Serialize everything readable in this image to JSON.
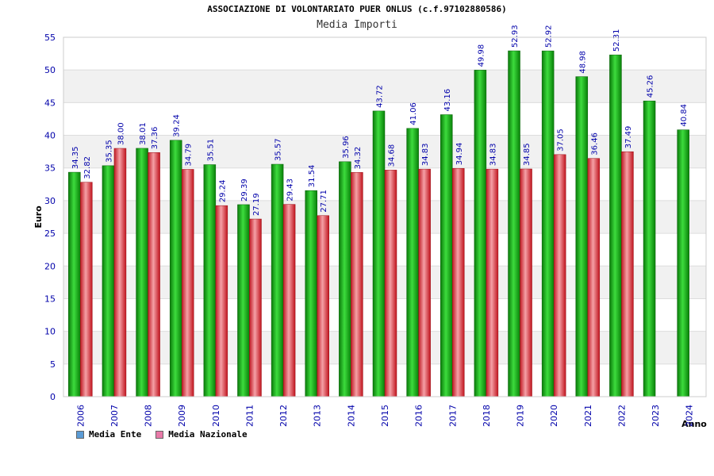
{
  "chart_data": {
    "type": "bar",
    "title": "ASSOCIAZIONE DI VOLONTARIATO PUER ONLUS (c.f.97102880586)",
    "subtitle": "Media Importi",
    "ylabel": "Euro",
    "xlabel": "Anno",
    "ylim": [
      0,
      55
    ],
    "yticks": [
      0,
      5,
      10,
      15,
      20,
      25,
      30,
      35,
      40,
      45,
      50,
      55
    ],
    "grid": true,
    "legend_position": "bottom-left",
    "categories": [
      "2006",
      "2007",
      "2008",
      "2009",
      "2010",
      "2011",
      "2012",
      "2013",
      "2014",
      "2015",
      "2016",
      "2017",
      "2018",
      "2019",
      "2020",
      "2021",
      "2022",
      "2023",
      "2024"
    ],
    "series": [
      {
        "name": "Media Ente",
        "legend_color": "#5b9bd5",
        "bar_color": "#1db81d",
        "values": [
          34.35,
          35.35,
          38.01,
          39.24,
          35.51,
          29.39,
          35.57,
          31.54,
          35.96,
          43.72,
          41.06,
          43.16,
          49.98,
          52.93,
          52.92,
          48.98,
          52.31,
          45.26,
          40.84
        ],
        "labels": [
          "34.35",
          "35.35",
          "38.01",
          "39.24",
          "35.51",
          "29.39",
          "35.57",
          "31.54",
          "35.96",
          "43.72",
          "41.06",
          "43.16",
          "49.98",
          "52.93",
          "52.92",
          "48.98",
          "52.31",
          "45.26",
          "40.84"
        ]
      },
      {
        "name": "Media Nazionale",
        "legend_color": "#e87aa8",
        "bar_color": "#e8323c",
        "values": [
          32.82,
          38.0,
          37.36,
          34.79,
          29.24,
          27.19,
          29.43,
          27.71,
          34.32,
          34.68,
          34.83,
          34.94,
          34.83,
          34.85,
          37.05,
          36.46,
          37.49,
          null,
          null
        ],
        "labels": [
          "32.82",
          "38.00",
          "37.36",
          "34.79",
          "29.24",
          "27.19",
          "29.43",
          "27.71",
          "34.32",
          "34.68",
          "34.83",
          "34.94",
          "34.83",
          "34.85",
          "37.05",
          "36.46",
          "37.49",
          "",
          ""
        ]
      }
    ]
  }
}
